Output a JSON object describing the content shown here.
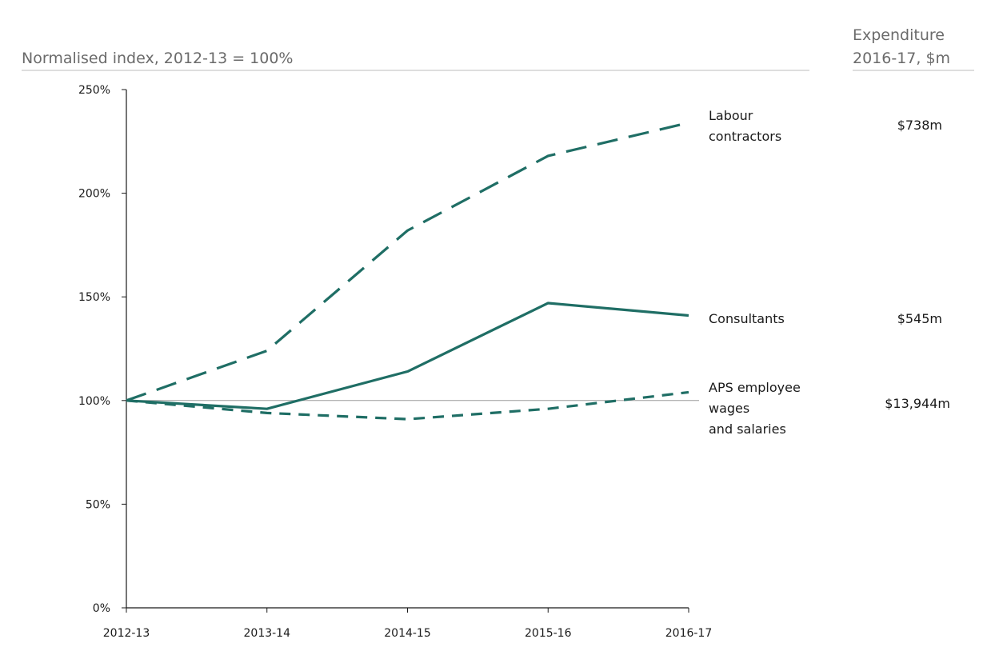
{
  "chart_data": {
    "type": "line",
    "title": "Normalised index, 2012-13 = 100%",
    "right_header": [
      "Expenditure",
      "2016-17, $m"
    ],
    "xlabel": "",
    "ylabel": "",
    "categories": [
      "2012-13",
      "2013-14",
      "2014-15",
      "2015-16",
      "2016-17"
    ],
    "ylim": [
      0,
      250
    ],
    "yticks": [
      0,
      50,
      100,
      150,
      200,
      250
    ],
    "ytick_labels": [
      "0%",
      "50%",
      "100%",
      "150%",
      "200%",
      "250%"
    ],
    "reference_line": 100,
    "grid": false,
    "series": [
      {
        "name": "Labour contractors",
        "label_lines": [
          "Labour",
          "contractors"
        ],
        "values": [
          100,
          124,
          182,
          218,
          234
        ],
        "style": "long-dash",
        "expenditure": "$738m"
      },
      {
        "name": "Consultants",
        "label_lines": [
          "Consultants"
        ],
        "values": [
          100,
          96,
          114,
          147,
          141
        ],
        "style": "solid",
        "expenditure": "$545m"
      },
      {
        "name": "APS employee wages and salaries",
        "label_lines": [
          "APS employee",
          "wages",
          "and  salaries"
        ],
        "values": [
          100,
          94,
          91,
          96,
          104
        ],
        "style": "short-dash",
        "expenditure": "$13,944m"
      }
    ],
    "colors": {
      "series": "#1f6e65",
      "axis": "#1a1a1a",
      "reference": "#9a9a9a",
      "header_rule": "#bdbdbd",
      "header_text": "#6b6b6b"
    }
  }
}
